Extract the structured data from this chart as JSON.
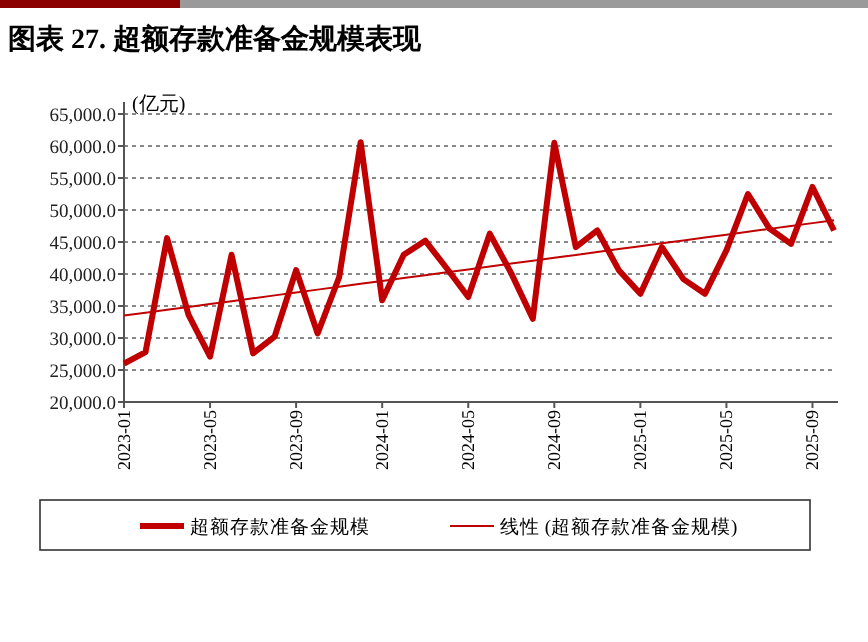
{
  "chart_data": {
    "type": "line",
    "title": "图表 27. 超额存款准备金规模表现",
    "ylabel": "(亿元)",
    "categories": [
      "2023-01",
      null,
      null,
      null,
      "2023-05",
      null,
      null,
      null,
      "2023-09",
      null,
      null,
      null,
      "2024-01",
      null,
      null,
      null,
      "2024-05",
      null,
      null,
      null,
      "2024-09",
      null,
      null,
      null,
      "2025-01",
      null,
      null,
      null,
      "2025-05",
      null,
      null,
      null,
      "2025-09",
      null
    ],
    "series": [
      {
        "name": "超额存款准备金规模",
        "color": "#c00000",
        "values": [
          26000,
          27800,
          45600,
          33600,
          27100,
          43000,
          27600,
          30200,
          40600,
          30700,
          39500,
          60600,
          35900,
          43000,
          45200,
          40900,
          36400,
          46300,
          40100,
          33000,
          60500,
          44200,
          46800,
          40600,
          36900,
          44200,
          39200,
          36900,
          43700,
          52500,
          47100,
          44700,
          53600,
          46800
        ]
      },
      {
        "name": "线性 (超额存款准备金规模)",
        "color": "#c00000",
        "values": [
          33500,
          33950,
          34400,
          34850,
          35310,
          35760,
          36210,
          36660,
          37110,
          37560,
          38020,
          38470,
          38920,
          39370,
          39820,
          40270,
          40720,
          41180,
          41630,
          42080,
          42530,
          42980,
          43430,
          43890,
          44340,
          44790,
          45240,
          45690,
          46140,
          46600,
          47050,
          47500,
          47950,
          48400
        ]
      }
    ],
    "ylim": [
      20000,
      65000
    ],
    "yticks": [
      {
        "value": 20000,
        "label": "20,000.0"
      },
      {
        "value": 25000,
        "label": "25,000.0"
      },
      {
        "value": 30000,
        "label": "30,000.0"
      },
      {
        "value": 35000,
        "label": "35,000.0"
      },
      {
        "value": 40000,
        "label": "40,000.0"
      },
      {
        "value": 45000,
        "label": "45,000.0"
      },
      {
        "value": 50000,
        "label": "50,000.0"
      },
      {
        "value": 55000,
        "label": "55,000.0"
      },
      {
        "value": 60000,
        "label": "60,000.0"
      },
      {
        "value": 65000,
        "label": "65,000.0"
      }
    ],
    "grid": "y",
    "legend": "bottom",
    "marker": "none"
  }
}
